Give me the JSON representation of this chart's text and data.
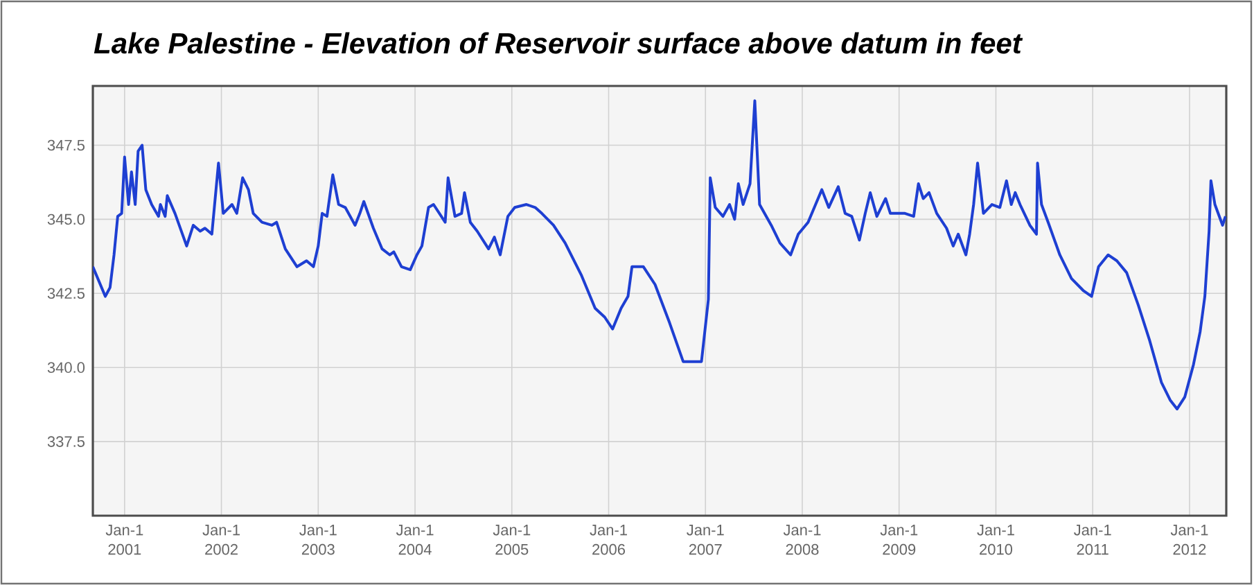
{
  "chart_data": {
    "type": "line",
    "title": "Lake Palestine - Elevation of Reservoir surface above datum in feet",
    "x": [
      "2000-09-03",
      "2000-10-20",
      "2000-11-07",
      "2000-11-22",
      "2000-12-06",
      "2000-12-21",
      "2001-01-01",
      "2001-01-16",
      "2001-01-27",
      "2001-02-10",
      "2001-02-21",
      "2001-03-08",
      "2001-03-22",
      "2001-04-13",
      "2001-05-09",
      "2001-05-16",
      "2001-06-03",
      "2001-06-11",
      "2001-07-10",
      "2001-08-23",
      "2001-09-17",
      "2001-10-13",
      "2001-10-31",
      "2001-11-26",
      "2001-12-21",
      "2002-01-08",
      "2002-02-10",
      "2002-02-28",
      "2002-03-22",
      "2002-04-13",
      "2002-05-01",
      "2002-06-03",
      "2002-07-10",
      "2002-07-28",
      "2002-08-30",
      "2002-10-13",
      "2002-11-18",
      "2002-12-14",
      "2003-01-01",
      "2003-01-16",
      "2003-02-03",
      "2003-02-25",
      "2003-03-19",
      "2003-04-13",
      "2003-05-20",
      "2003-06-07",
      "2003-06-22",
      "2003-07-28",
      "2003-08-30",
      "2003-09-28",
      "2003-10-13",
      "2003-11-11",
      "2003-12-14",
      "2004-01-08",
      "2004-01-27",
      "2004-02-21",
      "2004-03-11",
      "2004-04-24",
      "2004-05-05",
      "2004-05-31",
      "2004-06-25",
      "2004-07-06",
      "2004-07-28",
      "2004-08-23",
      "2004-10-05",
      "2004-10-27",
      "2004-11-18",
      "2004-12-17",
      "2005-01-12",
      "2005-02-25",
      "2005-03-30",
      "2005-04-24",
      "2005-06-07",
      "2005-07-21",
      "2005-09-21",
      "2005-11-11",
      "2005-12-17",
      "2006-01-16",
      "2006-02-17",
      "2006-03-15",
      "2006-03-30",
      "2006-04-28",
      "2006-05-12",
      "2006-06-25",
      "2006-08-19",
      "2006-10-09",
      "2006-11-15",
      "2006-12-17",
      "2007-01-12",
      "2007-01-19",
      "2007-02-07",
      "2007-03-08",
      "2007-04-02",
      "2007-04-21",
      "2007-05-05",
      "2007-05-23",
      "2007-06-18",
      "2007-07-06",
      "2007-07-24",
      "2007-09-06",
      "2007-10-09",
      "2007-11-18",
      "2007-12-17",
      "2008-01-23",
      "2008-02-25",
      "2008-03-15",
      "2008-04-10",
      "2008-05-16",
      "2008-06-11",
      "2008-07-06",
      "2008-08-04",
      "2008-08-26",
      "2008-09-14",
      "2008-10-09",
      "2008-11-11",
      "2008-11-29",
      "2009-01-23",
      "2009-02-25",
      "2009-03-15",
      "2009-04-02",
      "2009-04-24",
      "2009-05-23",
      "2009-06-29",
      "2009-07-24",
      "2009-08-12",
      "2009-09-10",
      "2009-09-24",
      "2009-10-09",
      "2009-10-24",
      "2009-11-15",
      "2009-12-17",
      "2010-01-16",
      "2010-02-10",
      "2010-02-28",
      "2010-03-15",
      "2010-04-02",
      "2010-05-09",
      "2010-06-03",
      "2010-06-07",
      "2010-06-22",
      "2010-07-17",
      "2010-08-30",
      "2010-10-13",
      "2010-11-26",
      "2010-12-28",
      "2011-01-23",
      "2011-02-28",
      "2011-04-02",
      "2011-05-09",
      "2011-06-22",
      "2011-08-04",
      "2011-09-17",
      "2011-10-20",
      "2011-11-15",
      "2011-12-14",
      "2012-01-16",
      "2012-02-10",
      "2012-02-28",
      "2012-03-15",
      "2012-03-22",
      "2012-04-06",
      "2012-05-05",
      "2012-05-16"
    ],
    "values": [
      343.4,
      342.4,
      342.7,
      343.8,
      345.1,
      345.2,
      347.1,
      345.5,
      346.6,
      345.5,
      347.3,
      347.5,
      346.0,
      345.5,
      345.1,
      345.5,
      345.1,
      345.8,
      345.2,
      344.1,
      344.8,
      344.6,
      344.7,
      344.5,
      346.9,
      345.2,
      345.5,
      345.2,
      346.4,
      346.0,
      345.2,
      344.9,
      344.8,
      344.9,
      344.0,
      343.4,
      343.6,
      343.4,
      344.1,
      345.2,
      345.1,
      346.5,
      345.5,
      345.4,
      344.8,
      345.2,
      345.6,
      344.7,
      344.0,
      343.8,
      343.9,
      343.4,
      343.3,
      343.8,
      344.1,
      345.4,
      345.5,
      344.9,
      346.4,
      345.1,
      345.2,
      345.9,
      344.9,
      344.6,
      344.0,
      344.4,
      343.8,
      345.1,
      345.4,
      345.5,
      345.4,
      345.2,
      344.8,
      344.2,
      343.1,
      342.0,
      341.7,
      341.3,
      342.0,
      342.4,
      343.4,
      343.4,
      343.4,
      342.8,
      341.5,
      340.2,
      340.2,
      340.2,
      342.3,
      346.4,
      345.4,
      345.1,
      345.5,
      345.0,
      346.2,
      345.5,
      346.2,
      349.0,
      345.5,
      344.8,
      344.2,
      343.8,
      344.5,
      344.9,
      345.6,
      346.0,
      345.4,
      346.1,
      345.2,
      345.1,
      344.3,
      345.2,
      345.9,
      345.1,
      345.7,
      345.2,
      345.2,
      345.1,
      346.2,
      345.7,
      345.9,
      345.2,
      344.7,
      344.1,
      344.5,
      343.8,
      344.5,
      345.5,
      346.9,
      345.2,
      345.5,
      345.4,
      346.3,
      345.5,
      345.9,
      345.5,
      344.8,
      344.5,
      346.9,
      345.5,
      344.9,
      343.8,
      343.0,
      342.6,
      342.4,
      343.4,
      343.8,
      343.6,
      343.2,
      342.1,
      340.9,
      339.5,
      338.9,
      338.6,
      339.0,
      340.1,
      341.2,
      342.4,
      344.6,
      346.3,
      345.5,
      344.8,
      345.1
    ],
    "color": "#1e3fd2",
    "xlim": [
      "2000-09-03",
      "2012-05-19"
    ],
    "ylim": [
      335,
      349.5
    ],
    "xticks": [
      {
        "value": "2001-01-01",
        "label": "Jan-1 2001"
      },
      {
        "value": "2002-01-01",
        "label": "Jan-1 2002"
      },
      {
        "value": "2003-01-01",
        "label": "Jan-1 2003"
      },
      {
        "value": "2004-01-01",
        "label": "Jan-1 2004"
      },
      {
        "value": "2005-01-01",
        "label": "Jan-1 2005"
      },
      {
        "value": "2006-01-01",
        "label": "Jan-1 2006"
      },
      {
        "value": "2007-01-01",
        "label": "Jan-1 2007"
      },
      {
        "value": "2008-01-01",
        "label": "Jan-1 2008"
      },
      {
        "value": "2009-01-01",
        "label": "Jan-1 2009"
      },
      {
        "value": "2010-01-01",
        "label": "Jan-1 2010"
      },
      {
        "value": "2011-01-01",
        "label": "Jan-1 2011"
      },
      {
        "value": "2012-01-01",
        "label": "Jan-1 2012"
      }
    ],
    "yticks": [
      {
        "value": 337.5,
        "label": "337.5"
      },
      {
        "value": 340,
        "label": "340.0"
      },
      {
        "value": 342.5,
        "label": "342.5"
      },
      {
        "value": 345,
        "label": "345.0"
      },
      {
        "value": 347.5,
        "label": "347.5"
      }
    ],
    "grid": true
  }
}
